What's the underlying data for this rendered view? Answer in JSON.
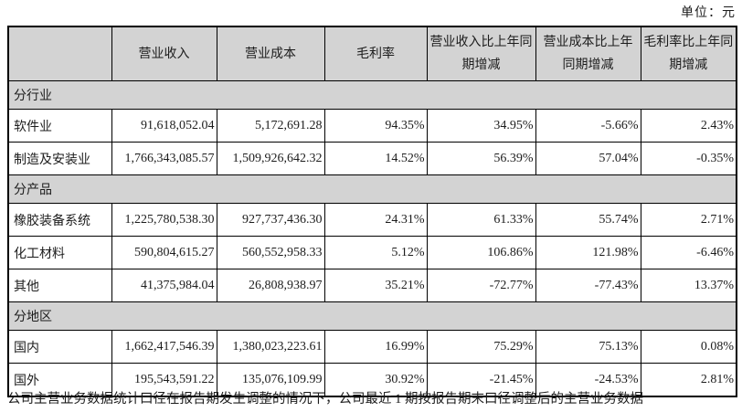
{
  "unit_label": "单位：元",
  "table": {
    "columns": [
      "",
      "营业收入",
      "营业成本",
      "毛利率",
      "营业收入比上年同期增减",
      "营业成本比上年同期增减",
      "毛利率比上年同期增减"
    ],
    "sections": [
      {
        "label": "分行业",
        "rows": [
          {
            "label": "软件业",
            "values": [
              "91,618,052.04",
              "5,172,691.28",
              "94.35%",
              "34.95%",
              "-5.66%",
              "2.43%"
            ]
          },
          {
            "label": "制造及安装业",
            "values": [
              "1,766,343,085.57",
              "1,509,926,642.32",
              "14.52%",
              "56.39%",
              "57.04%",
              "-0.35%"
            ]
          }
        ]
      },
      {
        "label": "分产品",
        "rows": [
          {
            "label": "橡胶装备系统",
            "values": [
              "1,225,780,538.30",
              "927,737,436.30",
              "24.31%",
              "61.33%",
              "55.74%",
              "2.71%"
            ]
          },
          {
            "label": "化工材料",
            "values": [
              "590,804,615.27",
              "560,552,958.33",
              "5.12%",
              "106.86%",
              "121.98%",
              "-6.46%"
            ]
          },
          {
            "label": "其他",
            "values": [
              "41,375,984.04",
              "26,808,938.97",
              "35.21%",
              "-72.77%",
              "-77.43%",
              "13.37%"
            ]
          }
        ]
      },
      {
        "label": "分地区",
        "rows": [
          {
            "label": "国内",
            "values": [
              "1,662,417,546.39",
              "1,380,023,223.61",
              "16.99%",
              "75.29%",
              "75.13%",
              "0.08%"
            ]
          },
          {
            "label": "国外",
            "values": [
              "195,543,591.22",
              "135,076,109.99",
              "30.92%",
              "-21.45%",
              "-24.53%",
              "2.81%"
            ]
          }
        ]
      }
    ]
  },
  "footer_note": "公司主营业务数据统计口径在报告期发生调整的情况下，公司最近 1 期按报告期末口径调整后的主营业务数据",
  "colors": {
    "section_bg": "#d3d3d3",
    "border": "#000000",
    "text": "#1c1c1c"
  }
}
